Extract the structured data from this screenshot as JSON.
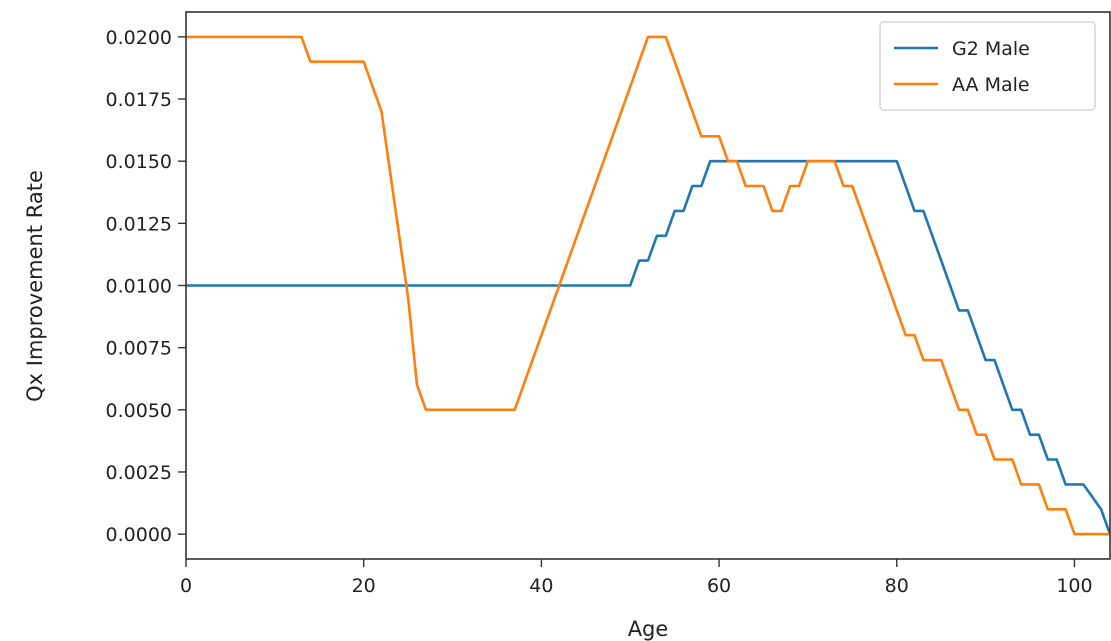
{
  "chart_data": {
    "type": "line",
    "title": "",
    "xlabel": "Age",
    "ylabel": "Qx Improvement Rate",
    "xlim": [
      0,
      104
    ],
    "ylim": [
      -0.001,
      0.021
    ],
    "x_ticks": [
      0,
      20,
      40,
      60,
      80,
      100
    ],
    "y_ticks": [
      0.0,
      0.0025,
      0.005,
      0.0075,
      0.01,
      0.0125,
      0.015,
      0.0175,
      0.02
    ],
    "x_tick_labels": [
      "0",
      "20",
      "40",
      "60",
      "80",
      "100"
    ],
    "y_tick_labels": [
      "0.0000",
      "0.0025",
      "0.0050",
      "0.0075",
      "0.0100",
      "0.0125",
      "0.0150",
      "0.0175",
      "0.0200"
    ],
    "grid": false,
    "legend_position": "top-right",
    "series": [
      {
        "name": "G2 Male",
        "color": "#1f77b4",
        "x": [
          0,
          50,
          51,
          52,
          53,
          54,
          55,
          56,
          57,
          58,
          59,
          60,
          65,
          70,
          75,
          80,
          81,
          82,
          83,
          84,
          85,
          86,
          87,
          88,
          89,
          90,
          91,
          92,
          93,
          94,
          95,
          96,
          97,
          98,
          99,
          100,
          101,
          102,
          103,
          104
        ],
        "y": [
          0.01,
          0.01,
          0.011,
          0.011,
          0.012,
          0.012,
          0.013,
          0.013,
          0.014,
          0.014,
          0.015,
          0.015,
          0.015,
          0.015,
          0.015,
          0.015,
          0.014,
          0.013,
          0.013,
          0.012,
          0.011,
          0.01,
          0.009,
          0.009,
          0.008,
          0.007,
          0.007,
          0.006,
          0.005,
          0.005,
          0.004,
          0.004,
          0.003,
          0.003,
          0.002,
          0.002,
          0.002,
          0.0015,
          0.001,
          0.0
        ]
      },
      {
        "name": "AA Male",
        "color": "#ff7f0e",
        "x": [
          0,
          13,
          14,
          19,
          20,
          21,
          22,
          23,
          24,
          25,
          26,
          27,
          30,
          33,
          37,
          42,
          47,
          52,
          53,
          54,
          55,
          56,
          57,
          58,
          59,
          60,
          61,
          62,
          63,
          64,
          65,
          66,
          67,
          68,
          69,
          70,
          71,
          72,
          73,
          74,
          75,
          76,
          77,
          78,
          79,
          80,
          81,
          82,
          83,
          84,
          85,
          86,
          87,
          88,
          89,
          90,
          91,
          92,
          93,
          94,
          95,
          96,
          97,
          98,
          99,
          100,
          101,
          102,
          103,
          104
        ],
        "y": [
          0.02,
          0.02,
          0.019,
          0.019,
          0.019,
          0.018,
          0.017,
          0.0145,
          0.012,
          0.0095,
          0.006,
          0.005,
          0.005,
          0.005,
          0.005,
          0.01,
          0.015,
          0.02,
          0.02,
          0.02,
          0.019,
          0.018,
          0.017,
          0.016,
          0.016,
          0.016,
          0.015,
          0.015,
          0.014,
          0.014,
          0.014,
          0.013,
          0.013,
          0.014,
          0.014,
          0.015,
          0.015,
          0.015,
          0.015,
          0.014,
          0.014,
          0.013,
          0.012,
          0.011,
          0.01,
          0.009,
          0.008,
          0.008,
          0.007,
          0.007,
          0.007,
          0.006,
          0.005,
          0.005,
          0.004,
          0.004,
          0.003,
          0.003,
          0.003,
          0.002,
          0.002,
          0.002,
          0.001,
          0.001,
          0.001,
          0.0,
          0.0,
          0.0,
          0.0,
          0.0
        ]
      }
    ]
  }
}
